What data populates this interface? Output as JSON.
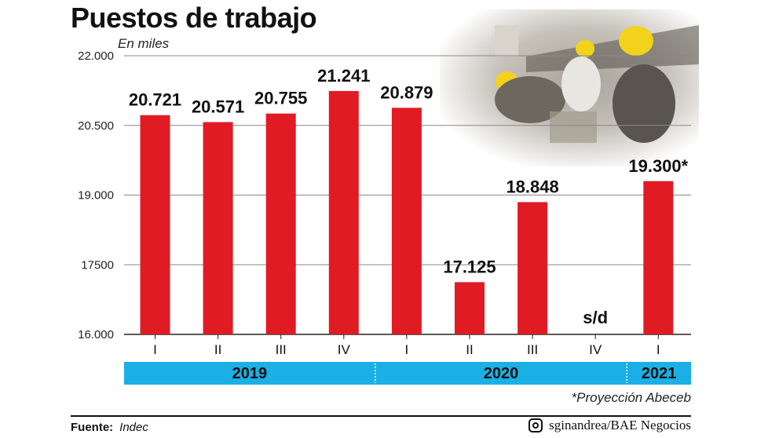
{
  "title": "Puestos de trabajo",
  "unit": "En miles",
  "footnote": "*Proyección Abeceb",
  "source": {
    "label": "Fuente:",
    "value": "Indec"
  },
  "credit": {
    "icon": "instagram-icon",
    "text": "sginandrea/BAE Negocios"
  },
  "colors": {
    "bar": "#e01b24",
    "year_band": "#1ab0e6",
    "text": "#111111"
  },
  "chart_data": {
    "type": "bar",
    "categories": [
      "I",
      "II",
      "III",
      "IV",
      "I",
      "II",
      "III",
      "IV",
      "I"
    ],
    "values": [
      20721,
      20571,
      20755,
      21241,
      20879,
      17125,
      18848,
      null,
      19300
    ],
    "data_labels": [
      "20.721",
      "20.571",
      "20.755",
      "21.241",
      "20.879",
      "17.125",
      "18.848",
      "s/d",
      "19.300*"
    ],
    "years": [
      {
        "label": "2019",
        "quarters": 4
      },
      {
        "label": "2020",
        "quarters": 4
      },
      {
        "label": "2021",
        "quarters": 1
      }
    ],
    "yticks": [
      16000,
      17500,
      19000,
      20500,
      22000
    ],
    "ytick_labels": [
      "16.000",
      "17500",
      "19.000",
      "20.500",
      "22.000"
    ],
    "ylim": [
      16000,
      22000
    ],
    "grid": true
  }
}
